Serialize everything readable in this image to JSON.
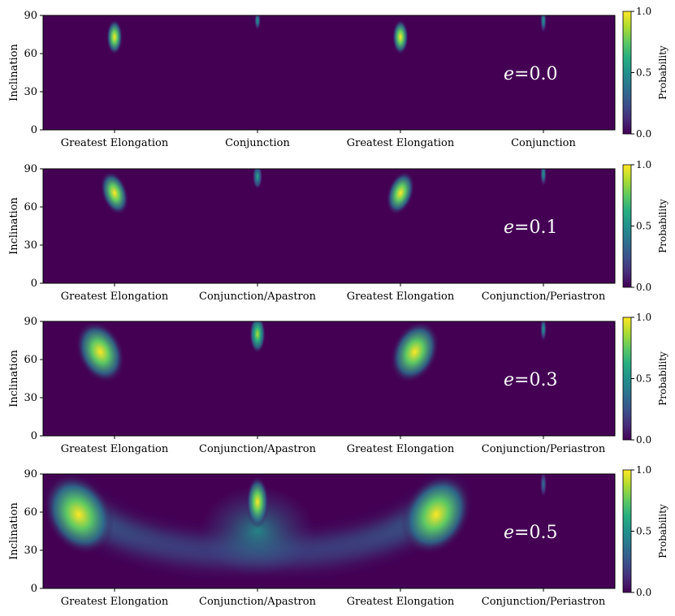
{
  "chart_data": [
    {
      "type": "heatmap",
      "annotation": "e = 0.0",
      "eccentricity": 0.0,
      "ylabel": "Inclination",
      "ylim": [
        0,
        90
      ],
      "yticks": [
        "0",
        "30",
        "60",
        "90"
      ],
      "xticks": [
        "Greatest Elongation",
        "Conjunction",
        "Greatest Elongation",
        "Conjunction"
      ],
      "colorbar": {
        "label": "Probability",
        "range": [
          0.0,
          1.0
        ],
        "ticks": [
          "0.0",
          "0.5",
          "1.0"
        ],
        "colormap": "viridis"
      },
      "peaks": [
        {
          "phase": 0.0,
          "inclination": 73,
          "value": 1.0
        },
        {
          "phase": 1.0,
          "inclination": 86,
          "value": 0.5
        },
        {
          "phase": 2.0,
          "inclination": 73,
          "value": 1.0
        },
        {
          "phase": 3.0,
          "inclination": 86,
          "value": 0.5
        }
      ]
    },
    {
      "type": "heatmap",
      "annotation": "e = 0.1",
      "eccentricity": 0.1,
      "ylabel": "Inclination",
      "ylim": [
        0,
        90
      ],
      "yticks": [
        "0",
        "30",
        "60",
        "90"
      ],
      "xticks": [
        "Greatest Elongation",
        "Conjunction/Apastron",
        "Greatest Elongation",
        "Conjunction/Periastron"
      ],
      "colorbar": {
        "label": "Probability",
        "range": [
          0.0,
          1.0
        ],
        "ticks": [
          "0.0",
          "0.5",
          "1.0"
        ],
        "colormap": "viridis"
      },
      "peaks": [
        {
          "phase": 0.0,
          "inclination": 71,
          "value": 1.0
        },
        {
          "phase": 1.0,
          "inclination": 84,
          "value": 0.6
        },
        {
          "phase": 2.0,
          "inclination": 71,
          "value": 1.0
        },
        {
          "phase": 3.0,
          "inclination": 86,
          "value": 0.45
        }
      ]
    },
    {
      "type": "heatmap",
      "annotation": "e = 0.3",
      "eccentricity": 0.3,
      "ylabel": "Inclination",
      "ylim": [
        0,
        90
      ],
      "yticks": [
        "0",
        "30",
        "60",
        "90"
      ],
      "xticks": [
        "Greatest Elongation",
        "Conjunction/Apastron",
        "Greatest Elongation",
        "Conjunction/Periastron"
      ],
      "colorbar": {
        "label": "Probability",
        "range": [
          0.0,
          1.0
        ],
        "ticks": [
          "0.0",
          "0.5",
          "1.0"
        ],
        "colormap": "viridis"
      },
      "peaks": [
        {
          "phase": -0.1,
          "inclination": 66,
          "value": 1.0
        },
        {
          "phase": 1.0,
          "inclination": 80,
          "value": 0.9
        },
        {
          "phase": 2.1,
          "inclination": 66,
          "value": 1.0
        },
        {
          "phase": 3.0,
          "inclination": 84,
          "value": 0.45
        }
      ]
    },
    {
      "type": "heatmap",
      "annotation": "e = 0.5",
      "eccentricity": 0.5,
      "ylabel": "Inclination",
      "ylim": [
        0,
        90
      ],
      "yticks": [
        "0",
        "30",
        "60",
        "90"
      ],
      "xticks": [
        "Greatest Elongation",
        "Conjunction/Apastron",
        "Greatest Elongation",
        "Conjunction/Periastron"
      ],
      "colorbar": {
        "label": "Probability",
        "range": [
          0.0,
          1.0
        ],
        "ticks": [
          "0.0",
          "0.5",
          "1.0"
        ],
        "colormap": "viridis"
      },
      "peaks": [
        {
          "phase": -0.25,
          "inclination": 58,
          "value": 1.0
        },
        {
          "phase": 1.0,
          "inclination": 68,
          "value": 1.0
        },
        {
          "phase": 2.25,
          "inclination": 58,
          "value": 1.0
        },
        {
          "phase": 3.0,
          "inclination": 82,
          "value": 0.4
        }
      ]
    }
  ]
}
